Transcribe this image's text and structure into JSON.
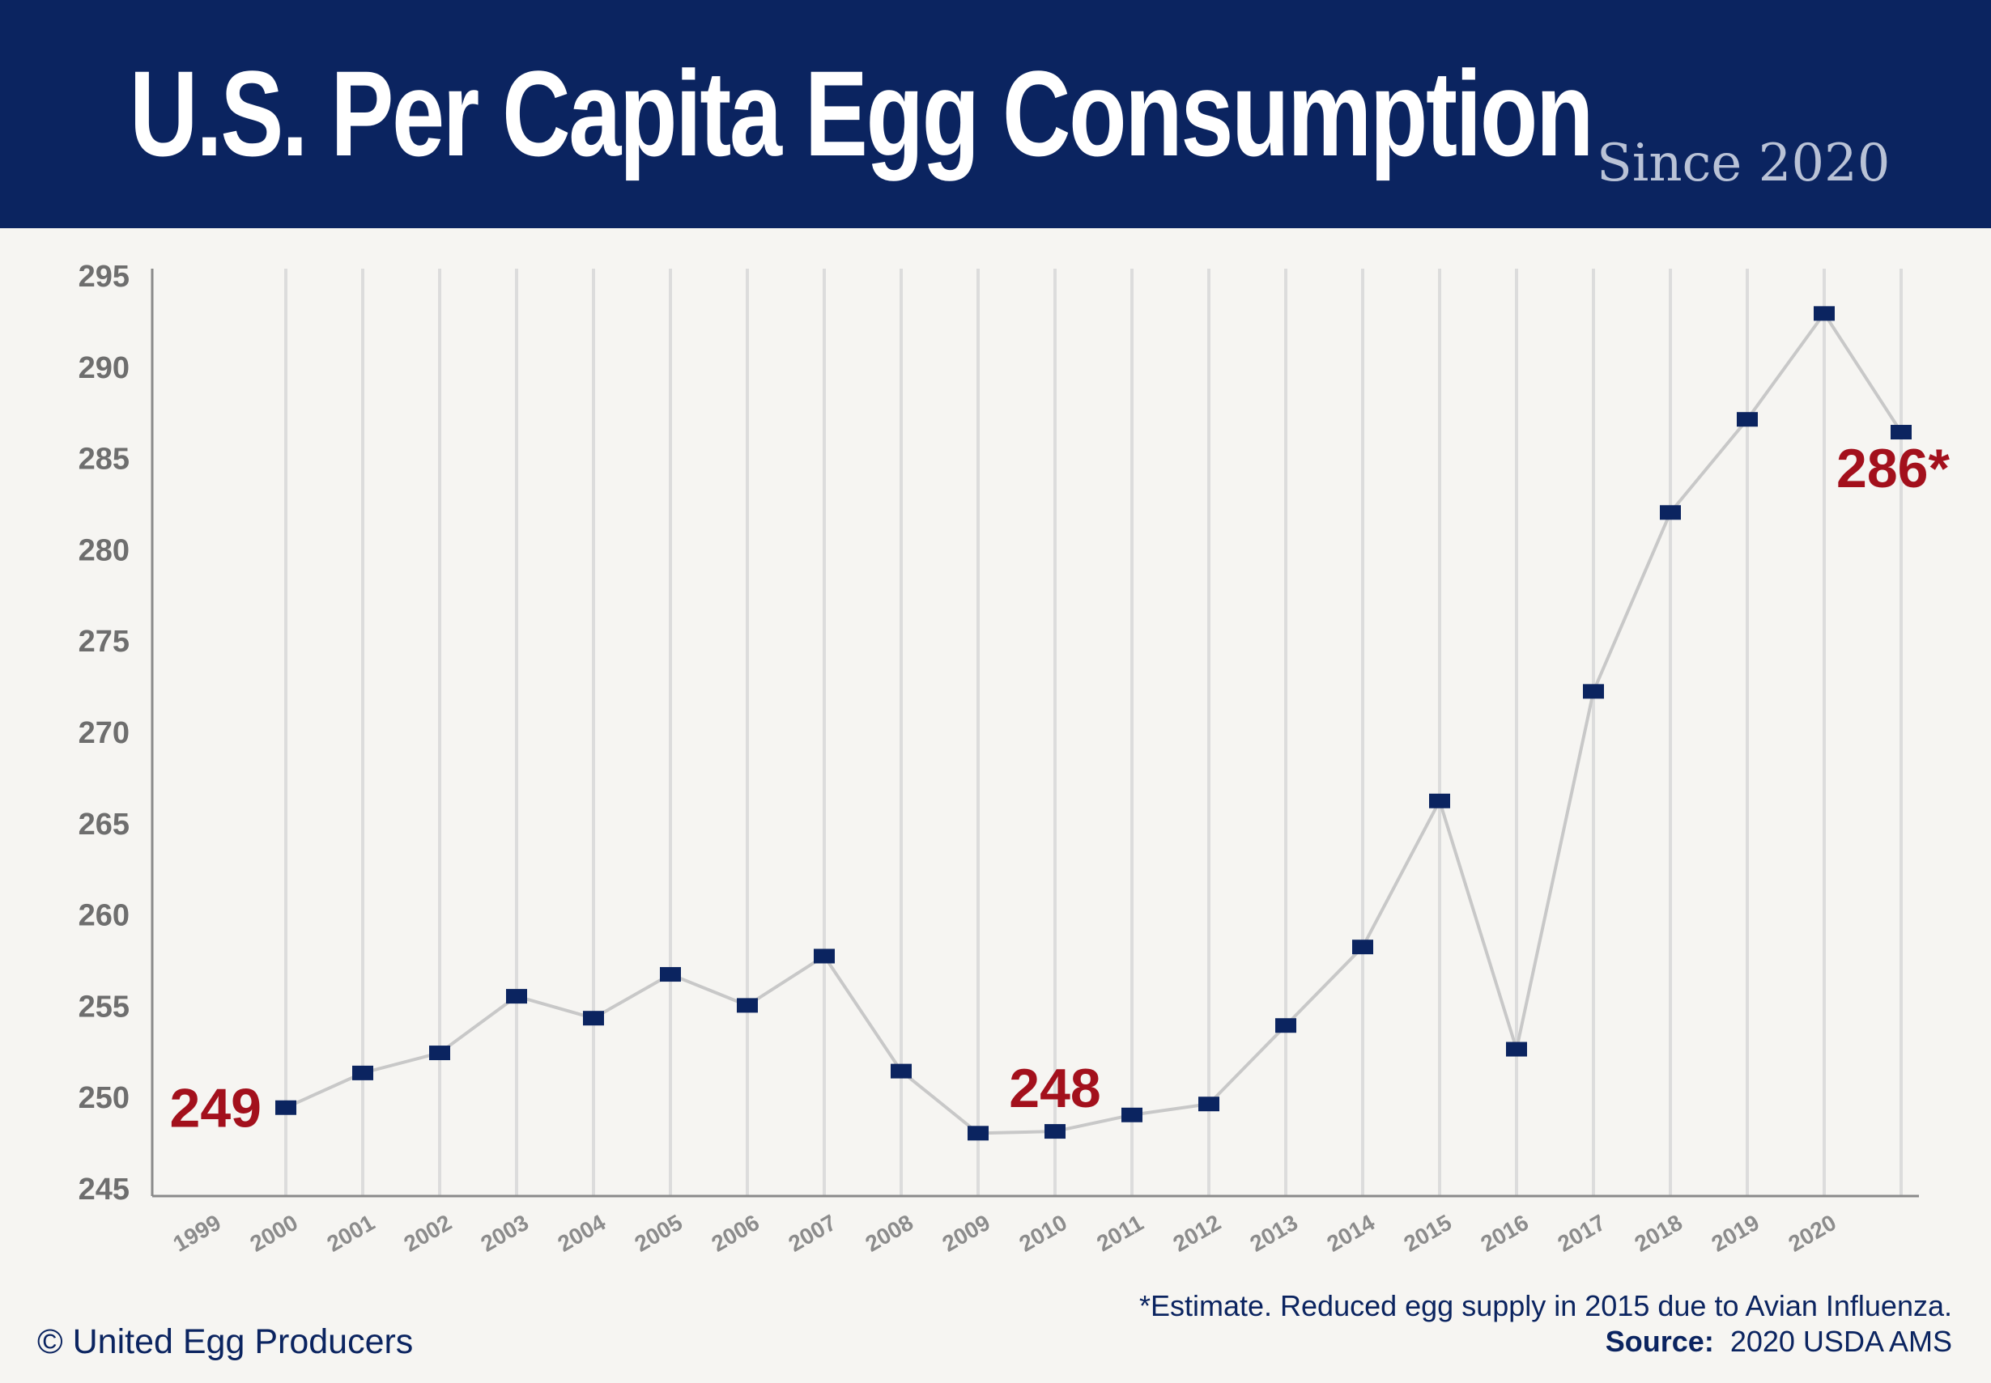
{
  "header": {
    "title": "U.S. Per Capita Egg Consumption",
    "subtitle": "Since 2020"
  },
  "chart_data": {
    "type": "line",
    "title": "U.S. Per Capita Egg Consumption",
    "subtitle": "Since 2020",
    "xlabel": "",
    "ylabel": "",
    "ylim": [
      245,
      295
    ],
    "yticks": [
      295,
      290,
      285,
      280,
      275,
      270,
      265,
      260,
      255,
      250,
      245
    ],
    "categories": [
      "1999",
      "2000",
      "2001",
      "2002",
      "2003",
      "2004",
      "2005",
      "2006",
      "2007",
      "2008",
      "2009",
      "2010",
      "2011",
      "2012",
      "2013",
      "2014",
      "2015",
      "2016",
      "2017",
      "2018",
      "2019",
      "2020"
    ],
    "series": [
      {
        "values": [
          249.4,
          251.3,
          252.4,
          255.5,
          254.3,
          256.7,
          255.0,
          257.7,
          251.4,
          248.0,
          248.1,
          249.0,
          249.6,
          253.9,
          258.2,
          266.2,
          252.6,
          272.2,
          282.0,
          287.1,
          292.9,
          286.4
        ]
      }
    ],
    "annotations": [
      {
        "text": "249",
        "category": "1999"
      },
      {
        "text": "248",
        "category": "2009"
      },
      {
        "text": "286*",
        "category": "2020"
      }
    ],
    "grid": "vertical",
    "colors": {
      "line": "#c8c8c8",
      "marker": "#0b2460",
      "annotation": "#a3101c",
      "tick": "#6e6e6e",
      "gridline": "#dcdcdc",
      "axis": "#8a8a8a"
    }
  },
  "footer": {
    "copyright": "© United Egg Producers",
    "note": "*Estimate.  Reduced egg supply in 2015 due to Avian Influenza.",
    "source_label": "Source:",
    "source_value": "2020 USDA AMS"
  }
}
